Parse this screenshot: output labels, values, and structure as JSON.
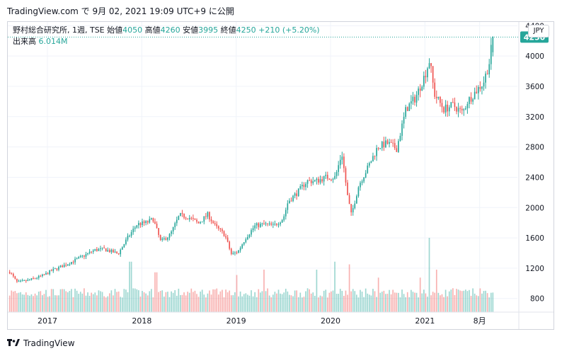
{
  "header": {
    "title": "TradingView.com で 9月 02, 2021 19:09 UTC+9 に公開"
  },
  "legend": {
    "symbol": "野村総合研究所, 1週, TSE",
    "open_label": "始値",
    "open": "4050",
    "high_label": "高値",
    "high": "4260",
    "low_label": "安値",
    "low": "3995",
    "close_label": "終値",
    "close": "4250",
    "change": "+210 (+5.20%)",
    "volume_label": "出来高",
    "volume": "6.014M"
  },
  "currency": "JPY",
  "last_price_label": "4250",
  "footer": {
    "brand": "TradingView"
  },
  "colors": {
    "up": "#26a69a",
    "down": "#ef5350",
    "grid": "#f0f3fa",
    "axis_text": "#131722",
    "price_line": "#26a69a"
  },
  "chart_data": {
    "type": "candlestick",
    "series_name": "野村総合研究所, 1週, TSE",
    "interval": "1 week",
    "currency": "JPY",
    "y_ticks": [
      800,
      1200,
      1600,
      2000,
      2400,
      2800,
      3200,
      3600,
      4000,
      4400
    ],
    "y_range": [
      620,
      4450
    ],
    "x_ticks": [
      {
        "label": "2017",
        "t": 2017.0
      },
      {
        "label": "2018",
        "t": 2018.0
      },
      {
        "label": "2019",
        "t": 2019.0
      },
      {
        "label": "2020",
        "t": 2020.0
      },
      {
        "label": "2021",
        "t": 2021.0
      },
      {
        "label": "8月",
        "t": 2021.58
      }
    ],
    "x_range": [
      2016.58,
      2021.98
    ],
    "last": {
      "open": 4050,
      "high": 4260,
      "low": 3995,
      "close": 4250,
      "volume": "6.014M"
    },
    "close_path": [
      [
        2016.6,
        1150
      ],
      [
        2016.68,
        1010
      ],
      [
        2016.8,
        1040
      ],
      [
        2016.95,
        1100
      ],
      [
        2017.05,
        1170
      ],
      [
        2017.2,
        1250
      ],
      [
        2017.35,
        1340
      ],
      [
        2017.5,
        1440
      ],
      [
        2017.6,
        1450
      ],
      [
        2017.75,
        1390
      ],
      [
        2017.85,
        1600
      ],
      [
        2017.95,
        1780
      ],
      [
        2018.05,
        1800
      ],
      [
        2018.12,
        1850
      ],
      [
        2018.2,
        1550
      ],
      [
        2018.3,
        1640
      ],
      [
        2018.4,
        1900
      ],
      [
        2018.5,
        1870
      ],
      [
        2018.6,
        1790
      ],
      [
        2018.7,
        1910
      ],
      [
        2018.78,
        1750
      ],
      [
        2018.88,
        1640
      ],
      [
        2018.95,
        1380
      ],
      [
        2019.02,
        1420
      ],
      [
        2019.1,
        1600
      ],
      [
        2019.2,
        1760
      ],
      [
        2019.3,
        1780
      ],
      [
        2019.4,
        1760
      ],
      [
        2019.5,
        1860
      ],
      [
        2019.55,
        2080
      ],
      [
        2019.65,
        2200
      ],
      [
        2019.75,
        2350
      ],
      [
        2019.85,
        2350
      ],
      [
        2019.95,
        2400
      ],
      [
        2020.05,
        2400
      ],
      [
        2020.12,
        2720
      ],
      [
        2020.18,
        2150
      ],
      [
        2020.22,
        1900
      ],
      [
        2020.3,
        2300
      ],
      [
        2020.4,
        2540
      ],
      [
        2020.5,
        2800
      ],
      [
        2020.6,
        2850
      ],
      [
        2020.7,
        2780
      ],
      [
        2020.8,
        3300
      ],
      [
        2020.9,
        3450
      ],
      [
        2021.0,
        3750
      ],
      [
        2021.05,
        3950
      ],
      [
        2021.1,
        3500
      ],
      [
        2021.2,
        3300
      ],
      [
        2021.3,
        3350
      ],
      [
        2021.4,
        3250
      ],
      [
        2021.45,
        3400
      ],
      [
        2021.55,
        3550
      ],
      [
        2021.62,
        3650
      ],
      [
        2021.68,
        3900
      ],
      [
        2021.72,
        4250
      ]
    ],
    "volume_spikes": [
      [
        2017.88,
        1.9
      ],
      [
        2018.15,
        1.5
      ],
      [
        2019.0,
        1.4
      ],
      [
        2019.3,
        1.6
      ],
      [
        2019.85,
        1.6
      ],
      [
        2020.05,
        1.9
      ],
      [
        2020.2,
        1.8
      ],
      [
        2020.5,
        1.3
      ],
      [
        2020.95,
        1.3
      ],
      [
        2021.05,
        2.8
      ],
      [
        2021.12,
        1.6
      ],
      [
        2021.3,
        0.9
      ]
    ]
  }
}
